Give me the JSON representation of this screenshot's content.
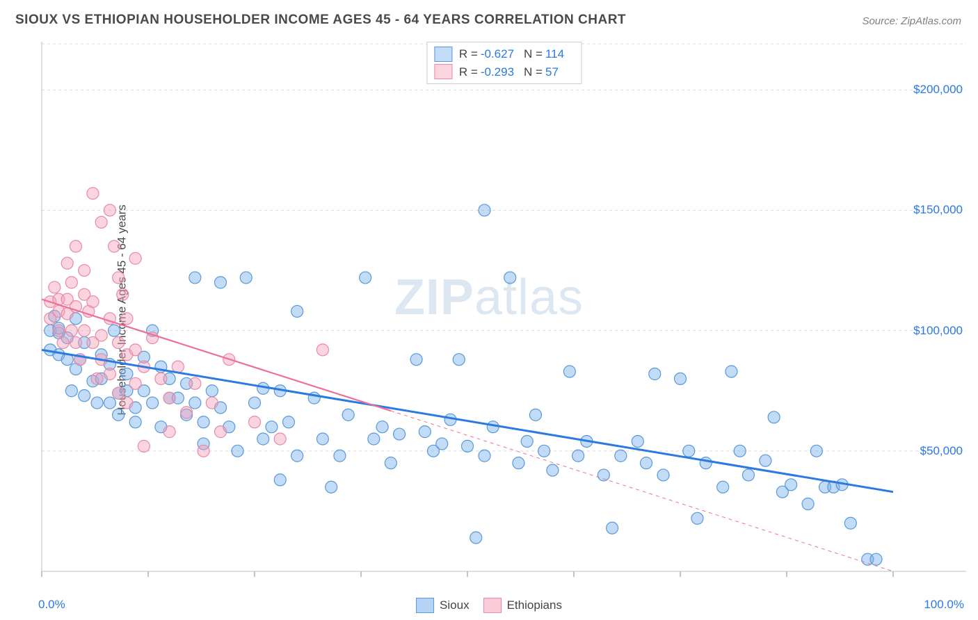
{
  "title": "SIOUX VS ETHIOPIAN HOUSEHOLDER INCOME AGES 45 - 64 YEARS CORRELATION CHART",
  "source": "Source: ZipAtlas.com",
  "ylabel": "Householder Income Ages 45 - 64 years",
  "watermark_bold": "ZIP",
  "watermark_light": "atlas",
  "chart": {
    "type": "scatter-with-regression",
    "background_color": "#ffffff",
    "grid_color_dashed": "#d9d9d9",
    "axis_line_color": "#c0c0c0",
    "tick_color": "#888888",
    "xlim": [
      0,
      100
    ],
    "ylim": [
      0,
      220000
    ],
    "x_ticks": [
      0,
      12.5,
      25,
      37.5,
      50,
      62.5,
      75,
      87.5,
      100
    ],
    "x_tick_labels_shown": {
      "0": "0.0%",
      "100": "100.0%"
    },
    "y_gridlines": [
      50000,
      100000,
      150000,
      200000
    ],
    "y_tick_labels": {
      "50000": "$50,000",
      "100000": "$100,000",
      "150000": "$150,000",
      "200000": "$200,000"
    },
    "label_color": "#2b7ae2",
    "label_fontsize": 17,
    "title_color": "#4a4a4a",
    "title_fontsize": 19,
    "point_radius": 8.5,
    "point_stroke_width": 1.2,
    "series": [
      {
        "name": "Sioux",
        "fill": "rgba(120,175,235,0.45)",
        "stroke": "#5a99d6",
        "trend_color": "#2b7ae2",
        "trend_width": 3,
        "trend_y_at_x0": 92000,
        "trend_y_at_x100": 33000,
        "trend_dash_after_x": null,
        "R": "-0.627",
        "N": "114",
        "points": [
          [
            1,
            100000
          ],
          [
            1,
            92000
          ],
          [
            1.5,
            106000
          ],
          [
            2,
            90000
          ],
          [
            2,
            99000
          ],
          [
            2,
            101000
          ],
          [
            3,
            88000
          ],
          [
            3,
            97000
          ],
          [
            3.5,
            75000
          ],
          [
            4,
            84000
          ],
          [
            4,
            105000
          ],
          [
            4.5,
            88000
          ],
          [
            5,
            73000
          ],
          [
            5,
            95000
          ],
          [
            6,
            79000
          ],
          [
            6.5,
            70000
          ],
          [
            7,
            90000
          ],
          [
            7,
            80000
          ],
          [
            8,
            70000
          ],
          [
            8,
            86000
          ],
          [
            8.5,
            100000
          ],
          [
            9,
            74000
          ],
          [
            9,
            65000
          ],
          [
            10,
            75000
          ],
          [
            10,
            82000
          ],
          [
            11,
            62000
          ],
          [
            11,
            68000
          ],
          [
            12,
            89000
          ],
          [
            12,
            75000
          ],
          [
            13,
            100000
          ],
          [
            13,
            70000
          ],
          [
            14,
            60000
          ],
          [
            14,
            85000
          ],
          [
            15,
            72000
          ],
          [
            15,
            80000
          ],
          [
            16,
            72000
          ],
          [
            17,
            65000
          ],
          [
            17,
            78000
          ],
          [
            18,
            122000
          ],
          [
            18,
            70000
          ],
          [
            19,
            53000
          ],
          [
            19,
            62000
          ],
          [
            20,
            75000
          ],
          [
            21,
            120000
          ],
          [
            21,
            68000
          ],
          [
            22,
            60000
          ],
          [
            23,
            50000
          ],
          [
            24,
            122000
          ],
          [
            25,
            70000
          ],
          [
            26,
            55000
          ],
          [
            26,
            76000
          ],
          [
            27,
            60000
          ],
          [
            28,
            38000
          ],
          [
            28,
            75000
          ],
          [
            29,
            62000
          ],
          [
            30,
            108000
          ],
          [
            30,
            48000
          ],
          [
            32,
            72000
          ],
          [
            33,
            55000
          ],
          [
            34,
            35000
          ],
          [
            35,
            48000
          ],
          [
            36,
            65000
          ],
          [
            38,
            122000
          ],
          [
            39,
            55000
          ],
          [
            40,
            60000
          ],
          [
            41,
            45000
          ],
          [
            42,
            57000
          ],
          [
            44,
            88000
          ],
          [
            45,
            58000
          ],
          [
            46,
            50000
          ],
          [
            47,
            53000
          ],
          [
            48,
            63000
          ],
          [
            49,
            88000
          ],
          [
            50,
            52000
          ],
          [
            51,
            14000
          ],
          [
            52,
            48000
          ],
          [
            52,
            150000
          ],
          [
            53,
            60000
          ],
          [
            55,
            122000
          ],
          [
            56,
            45000
          ],
          [
            57,
            54000
          ],
          [
            58,
            65000
          ],
          [
            59,
            50000
          ],
          [
            60,
            42000
          ],
          [
            62,
            83000
          ],
          [
            63,
            48000
          ],
          [
            64,
            54000
          ],
          [
            66,
            40000
          ],
          [
            67,
            18000
          ],
          [
            68,
            48000
          ],
          [
            70,
            54000
          ],
          [
            71,
            45000
          ],
          [
            72,
            82000
          ],
          [
            73,
            40000
          ],
          [
            75,
            80000
          ],
          [
            76,
            50000
          ],
          [
            77,
            22000
          ],
          [
            78,
            45000
          ],
          [
            80,
            35000
          ],
          [
            81,
            83000
          ],
          [
            82,
            50000
          ],
          [
            83,
            40000
          ],
          [
            85,
            46000
          ],
          [
            86,
            64000
          ],
          [
            87,
            33000
          ],
          [
            88,
            36000
          ],
          [
            90,
            28000
          ],
          [
            91,
            50000
          ],
          [
            92,
            35000
          ],
          [
            93,
            35000
          ],
          [
            94,
            36000
          ],
          [
            95,
            20000
          ],
          [
            97,
            5000
          ],
          [
            98,
            5000
          ]
        ]
      },
      {
        "name": "Ethiopians",
        "fill": "rgba(245,160,185,0.45)",
        "stroke": "#e88aa8",
        "trend_color": "#ef6f99",
        "trend_width": 2.2,
        "trend_y_at_x0": 113000,
        "trend_y_at_x100": 0,
        "trend_dash_after_x": 41,
        "R": "-0.293",
        "N": "57",
        "points": [
          [
            1,
            112000
          ],
          [
            1,
            105000
          ],
          [
            1.5,
            118000
          ],
          [
            2,
            108000
          ],
          [
            2,
            100000
          ],
          [
            2,
            113000
          ],
          [
            2.5,
            95000
          ],
          [
            3,
            113000
          ],
          [
            3,
            107000
          ],
          [
            3,
            128000
          ],
          [
            3.5,
            100000
          ],
          [
            3.5,
            120000
          ],
          [
            4,
            95000
          ],
          [
            4,
            110000
          ],
          [
            4,
            135000
          ],
          [
            4.5,
            88000
          ],
          [
            5,
            115000
          ],
          [
            5,
            100000
          ],
          [
            5,
            125000
          ],
          [
            5.5,
            108000
          ],
          [
            6,
            95000
          ],
          [
            6,
            157000
          ],
          [
            6,
            112000
          ],
          [
            6.5,
            80000
          ],
          [
            7,
            145000
          ],
          [
            7,
            98000
          ],
          [
            7,
            88000
          ],
          [
            8,
            150000
          ],
          [
            8,
            105000
          ],
          [
            8,
            82000
          ],
          [
            8.5,
            135000
          ],
          [
            9,
            122000
          ],
          [
            9,
            95000
          ],
          [
            9,
            74000
          ],
          [
            9.5,
            115000
          ],
          [
            10,
            90000
          ],
          [
            10,
            70000
          ],
          [
            10,
            105000
          ],
          [
            11,
            78000
          ],
          [
            11,
            92000
          ],
          [
            11,
            130000
          ],
          [
            12,
            85000
          ],
          [
            12,
            52000
          ],
          [
            13,
            97000
          ],
          [
            14,
            80000
          ],
          [
            15,
            72000
          ],
          [
            15,
            58000
          ],
          [
            16,
            85000
          ],
          [
            17,
            66000
          ],
          [
            18,
            78000
          ],
          [
            19,
            50000
          ],
          [
            20,
            70000
          ],
          [
            21,
            58000
          ],
          [
            22,
            88000
          ],
          [
            25,
            62000
          ],
          [
            28,
            55000
          ],
          [
            33,
            92000
          ]
        ]
      }
    ]
  },
  "legend_bottom": [
    {
      "label": "Sioux",
      "fill": "rgba(120,175,235,0.55)",
      "stroke": "#5a99d6"
    },
    {
      "label": "Ethiopians",
      "fill": "rgba(245,160,185,0.55)",
      "stroke": "#e88aa8"
    }
  ]
}
